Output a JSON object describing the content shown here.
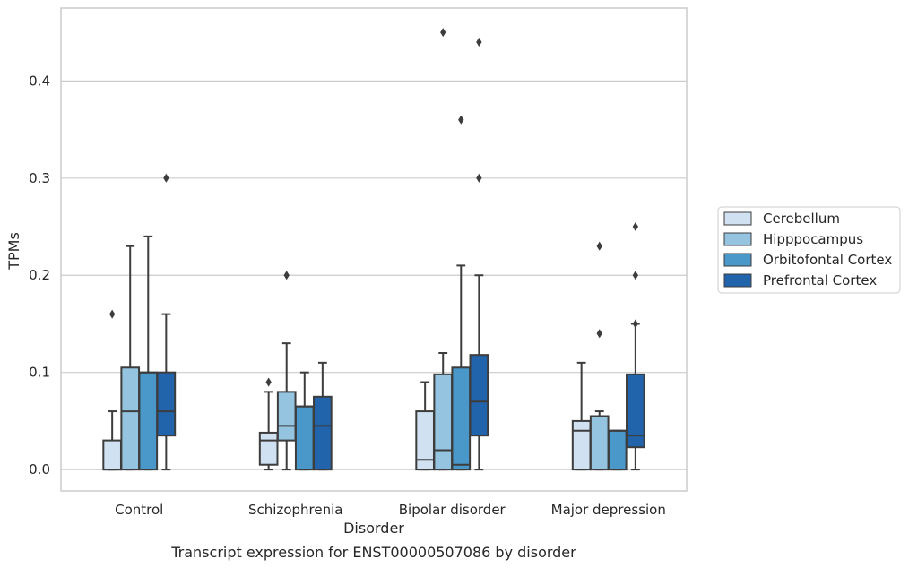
{
  "chart_data": {
    "type": "boxplot",
    "title": "",
    "caption": "Transcript expression for ENST00000507086 by disorder",
    "xlabel": "Disorder",
    "ylabel": "TPMs",
    "ylim": [
      -0.022,
      0.475
    ],
    "yticks": [
      0.0,
      0.1,
      0.2,
      0.3,
      0.4
    ],
    "ytick_labels": [
      "0.0",
      "0.1",
      "0.2",
      "0.3",
      "0.4"
    ],
    "grid": "horizontal",
    "legend_position": "right",
    "categories": [
      "Control",
      "Schizophrenia",
      "Bipolar disorder",
      "Major depression"
    ],
    "series": [
      {
        "name": "Cerebellum",
        "color": "#d0e1f2",
        "boxes": [
          {
            "whislo": 0.0,
            "q1": 0.0,
            "med": 0.0,
            "q3": 0.03,
            "whishi": 0.06,
            "fliers": [
              0.16
            ]
          },
          {
            "whislo": 0.0,
            "q1": 0.005,
            "med": 0.03,
            "q3": 0.038,
            "whishi": 0.08,
            "fliers": [
              0.09
            ]
          },
          {
            "whislo": 0.0,
            "q1": 0.0,
            "med": 0.01,
            "q3": 0.06,
            "whishi": 0.09,
            "fliers": []
          },
          {
            "whislo": 0.0,
            "q1": 0.0,
            "med": 0.04,
            "q3": 0.05,
            "whishi": 0.11,
            "fliers": []
          }
        ]
      },
      {
        "name": "Hipppocampus",
        "color": "#94c4df",
        "boxes": [
          {
            "whislo": 0.0,
            "q1": 0.0,
            "med": 0.06,
            "q3": 0.105,
            "whishi": 0.23,
            "fliers": []
          },
          {
            "whislo": 0.0,
            "q1": 0.03,
            "med": 0.045,
            "q3": 0.08,
            "whishi": 0.13,
            "fliers": [
              0.2
            ]
          },
          {
            "whislo": 0.0,
            "q1": 0.0,
            "med": 0.02,
            "q3": 0.098,
            "whishi": 0.12,
            "fliers": [
              0.45
            ]
          },
          {
            "whislo": 0.0,
            "q1": 0.0,
            "med": 0.055,
            "q3": 0.055,
            "whishi": 0.06,
            "fliers": [
              0.14,
              0.23
            ]
          }
        ]
      },
      {
        "name": "Orbitofontal Cortex",
        "color": "#4a98c9",
        "boxes": [
          {
            "whislo": 0.0,
            "q1": 0.0,
            "med": 0.1,
            "q3": 0.1,
            "whishi": 0.24,
            "fliers": []
          },
          {
            "whislo": 0.0,
            "q1": 0.0,
            "med": 0.065,
            "q3": 0.065,
            "whishi": 0.1,
            "fliers": []
          },
          {
            "whislo": 0.0,
            "q1": 0.0,
            "med": 0.005,
            "q3": 0.105,
            "whishi": 0.21,
            "fliers": [
              0.36
            ]
          },
          {
            "whislo": 0.0,
            "q1": 0.0,
            "med": 0.04,
            "q3": 0.04,
            "whishi": 0.04,
            "fliers": []
          }
        ]
      },
      {
        "name": "Prefrontal Cortex",
        "color": "#2164ab",
        "boxes": [
          {
            "whislo": 0.0,
            "q1": 0.035,
            "med": 0.06,
            "q3": 0.1,
            "whishi": 0.16,
            "fliers": [
              0.3
            ]
          },
          {
            "whislo": 0.0,
            "q1": 0.0,
            "med": 0.045,
            "q3": 0.075,
            "whishi": 0.11,
            "fliers": []
          },
          {
            "whislo": 0.0,
            "q1": 0.035,
            "med": 0.07,
            "q3": 0.118,
            "whishi": 0.2,
            "fliers": [
              0.3,
              0.44
            ]
          },
          {
            "whislo": 0.0,
            "q1": 0.023,
            "med": 0.035,
            "q3": 0.098,
            "whishi": 0.15,
            "fliers": [
              0.15,
              0.2,
              0.25
            ]
          }
        ]
      }
    ]
  }
}
